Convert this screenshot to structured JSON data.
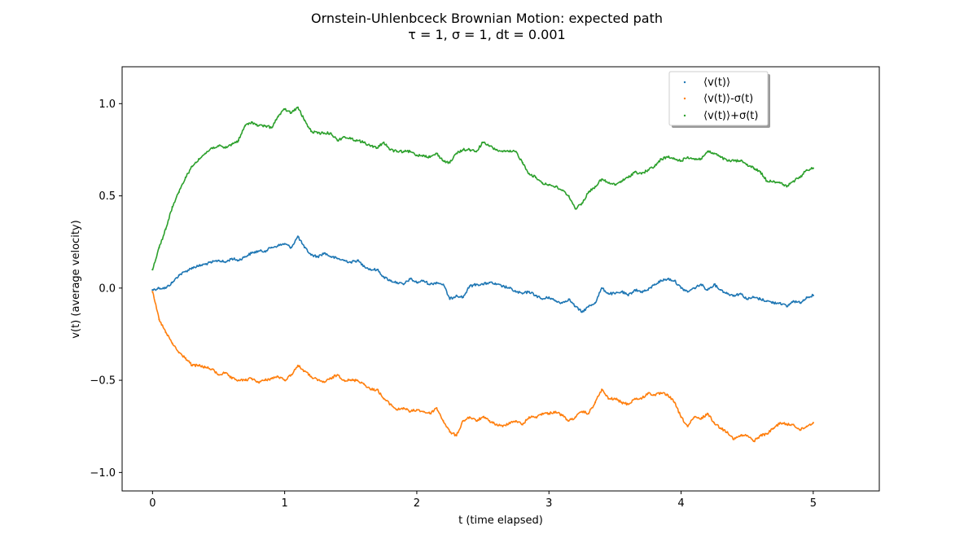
{
  "chart_data": {
    "type": "scatter",
    "title": "Ornstein-Uhlenbceck Brownian Motion: expected path",
    "subtitle": "τ = 1, σ = 1, dt = 0.001",
    "xlabel": "t (time elapsed)",
    "ylabel": "v(t) (average velocity)",
    "xlim": [
      -0.23,
      5.5
    ],
    "ylim": [
      -1.1,
      1.2
    ],
    "xticks": [
      0,
      1,
      2,
      3,
      4,
      5
    ],
    "xtick_labels": [
      "0",
      "1",
      "2",
      "3",
      "4",
      "5"
    ],
    "yticks": [
      -1.0,
      -0.5,
      0.0,
      0.5,
      1.0
    ],
    "ytick_labels": [
      "−1.0",
      "−0.5",
      "0.0",
      "0.5",
      "1.0"
    ],
    "grid": false,
    "legend_position": "top-right",
    "x": [
      0,
      0.05,
      0.1,
      0.15,
      0.2,
      0.25,
      0.3,
      0.35,
      0.4,
      0.45,
      0.5,
      0.55,
      0.6,
      0.65,
      0.7,
      0.75,
      0.8,
      0.85,
      0.9,
      0.95,
      1.0,
      1.05,
      1.1,
      1.15,
      1.2,
      1.25,
      1.3,
      1.35,
      1.4,
      1.45,
      1.5,
      1.55,
      1.6,
      1.65,
      1.7,
      1.75,
      1.8,
      1.85,
      1.9,
      1.95,
      2.0,
      2.05,
      2.1,
      2.15,
      2.2,
      2.25,
      2.3,
      2.35,
      2.4,
      2.45,
      2.5,
      2.55,
      2.6,
      2.65,
      2.7,
      2.75,
      2.8,
      2.85,
      2.9,
      2.95,
      3.0,
      3.05,
      3.1,
      3.15,
      3.2,
      3.25,
      3.3,
      3.35,
      3.4,
      3.45,
      3.5,
      3.55,
      3.6,
      3.65,
      3.7,
      3.75,
      3.8,
      3.85,
      3.9,
      3.95,
      4.0,
      4.05,
      4.1,
      4.15,
      4.2,
      4.25,
      4.3,
      4.35,
      4.4,
      4.45,
      4.5,
      4.55,
      4.6,
      4.65,
      4.7,
      4.75,
      4.8,
      4.85,
      4.9,
      4.95,
      5.0
    ],
    "series": [
      {
        "name": "⟨v(t)⟩",
        "color": "#1f77b4",
        "values": [
          -0.01,
          0.0,
          0.0,
          0.03,
          0.07,
          0.09,
          0.11,
          0.12,
          0.13,
          0.14,
          0.15,
          0.14,
          0.16,
          0.15,
          0.17,
          0.19,
          0.2,
          0.2,
          0.22,
          0.23,
          0.24,
          0.22,
          0.28,
          0.22,
          0.18,
          0.17,
          0.19,
          0.17,
          0.16,
          0.15,
          0.14,
          0.15,
          0.12,
          0.1,
          0.1,
          0.06,
          0.04,
          0.03,
          0.02,
          0.05,
          0.03,
          0.04,
          0.02,
          0.03,
          0.02,
          -0.06,
          -0.04,
          -0.05,
          0.01,
          0.02,
          0.02,
          0.03,
          0.02,
          0.01,
          0.0,
          -0.02,
          -0.03,
          -0.02,
          -0.04,
          -0.06,
          -0.05,
          -0.07,
          -0.08,
          -0.06,
          -0.1,
          -0.13,
          -0.1,
          -0.08,
          0.0,
          -0.03,
          -0.03,
          -0.02,
          -0.04,
          -0.01,
          -0.02,
          -0.01,
          0.02,
          0.04,
          0.05,
          0.04,
          0.0,
          -0.02,
          0.0,
          0.02,
          -0.01,
          0.02,
          -0.01,
          -0.03,
          -0.04,
          -0.03,
          -0.06,
          -0.05,
          -0.06,
          -0.07,
          -0.08,
          -0.08,
          -0.1,
          -0.07,
          -0.08,
          -0.05,
          -0.04
        ]
      },
      {
        "name": "⟨v(t)⟩-σ(t)",
        "color": "#ff7f0e",
        "values": [
          -0.02,
          -0.17,
          -0.24,
          -0.3,
          -0.35,
          -0.38,
          -0.42,
          -0.42,
          -0.43,
          -0.44,
          -0.47,
          -0.46,
          -0.49,
          -0.5,
          -0.5,
          -0.49,
          -0.51,
          -0.5,
          -0.49,
          -0.48,
          -0.5,
          -0.47,
          -0.42,
          -0.45,
          -0.48,
          -0.5,
          -0.51,
          -0.49,
          -0.47,
          -0.5,
          -0.5,
          -0.5,
          -0.52,
          -0.55,
          -0.55,
          -0.6,
          -0.63,
          -0.66,
          -0.65,
          -0.67,
          -0.66,
          -0.67,
          -0.68,
          -0.65,
          -0.72,
          -0.78,
          -0.8,
          -0.72,
          -0.7,
          -0.72,
          -0.7,
          -0.72,
          -0.74,
          -0.75,
          -0.73,
          -0.72,
          -0.74,
          -0.7,
          -0.7,
          -0.68,
          -0.68,
          -0.67,
          -0.69,
          -0.72,
          -0.7,
          -0.67,
          -0.68,
          -0.62,
          -0.55,
          -0.6,
          -0.6,
          -0.62,
          -0.63,
          -0.6,
          -0.6,
          -0.57,
          -0.58,
          -0.57,
          -0.58,
          -0.62,
          -0.7,
          -0.75,
          -0.7,
          -0.71,
          -0.68,
          -0.73,
          -0.76,
          -0.78,
          -0.82,
          -0.8,
          -0.8,
          -0.83,
          -0.8,
          -0.79,
          -0.76,
          -0.73,
          -0.74,
          -0.74,
          -0.77,
          -0.75,
          -0.73
        ]
      },
      {
        "name": "⟨v(t)⟩+σ(t)",
        "color": "#2ca02c",
        "values": [
          0.1,
          0.22,
          0.32,
          0.44,
          0.52,
          0.6,
          0.66,
          0.7,
          0.73,
          0.76,
          0.77,
          0.76,
          0.78,
          0.8,
          0.88,
          0.9,
          0.88,
          0.88,
          0.87,
          0.93,
          0.97,
          0.95,
          0.98,
          0.91,
          0.85,
          0.84,
          0.84,
          0.84,
          0.8,
          0.82,
          0.81,
          0.8,
          0.79,
          0.77,
          0.76,
          0.79,
          0.75,
          0.74,
          0.74,
          0.74,
          0.72,
          0.72,
          0.71,
          0.73,
          0.69,
          0.68,
          0.73,
          0.75,
          0.75,
          0.74,
          0.79,
          0.77,
          0.75,
          0.74,
          0.74,
          0.74,
          0.68,
          0.62,
          0.6,
          0.57,
          0.56,
          0.55,
          0.53,
          0.5,
          0.43,
          0.46,
          0.52,
          0.55,
          0.59,
          0.57,
          0.56,
          0.58,
          0.6,
          0.63,
          0.62,
          0.64,
          0.66,
          0.7,
          0.71,
          0.7,
          0.69,
          0.71,
          0.7,
          0.7,
          0.74,
          0.73,
          0.71,
          0.69,
          0.69,
          0.69,
          0.67,
          0.65,
          0.63,
          0.58,
          0.58,
          0.57,
          0.55,
          0.58,
          0.6,
          0.64,
          0.65
        ]
      }
    ]
  }
}
